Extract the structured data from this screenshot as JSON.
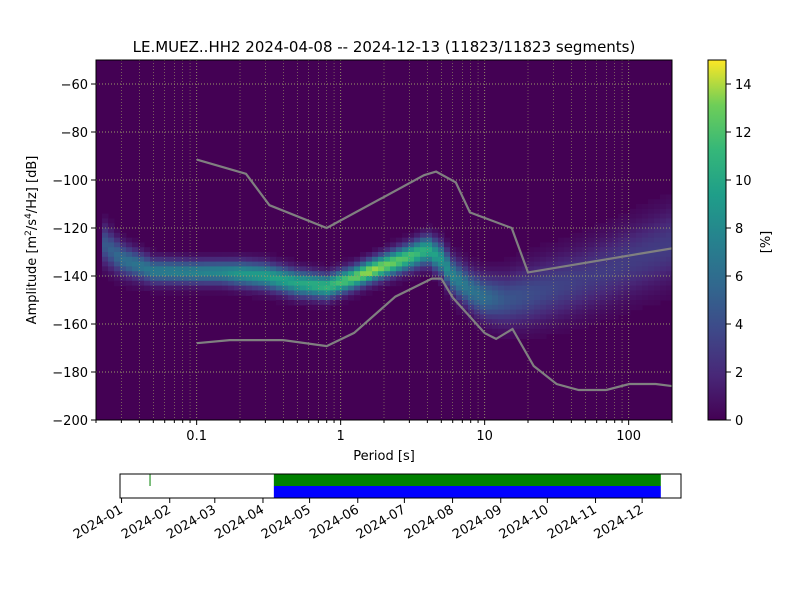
{
  "chart_data": {
    "type": "heatmap",
    "title": "LE.MUEZ..HH2   2024-04-08 -- 2024-12-13  (11823/11823 segments)",
    "xlabel": "Period [s]",
    "ylabel_parts": [
      "Amplitude [m",
      "2",
      "/s",
      "4",
      "/Hz] [dB]"
    ],
    "xscale": "log",
    "xlim": [
      0.02,
      200
    ],
    "ylim": [
      -200,
      -50
    ],
    "x_ticks": [
      {
        "value": 0.1,
        "label": "0.1"
      },
      {
        "value": 1,
        "label": "1"
      },
      {
        "value": 10,
        "label": "10"
      },
      {
        "value": 100,
        "label": "100"
      }
    ],
    "y_ticks": [
      -60,
      -80,
      -100,
      -120,
      -140,
      -160,
      -180,
      -200
    ],
    "grid": true,
    "colormap": "viridis",
    "colorbar": {
      "label": "[%]",
      "min": 0,
      "max": 15,
      "ticks": [
        0,
        2,
        4,
        6,
        8,
        10,
        12,
        14
      ]
    },
    "colors": {
      "background": "#440154",
      "noise_model": "#808080",
      "grid": "#9a9a6a"
    },
    "psd_density_band": {
      "period": [
        0.02,
        0.03,
        0.05,
        0.1,
        0.15,
        0.2,
        0.3,
        0.5,
        0.8,
        1.2,
        1.6,
        2.2,
        3.0,
        4.0,
        5.0,
        6.0,
        8.0,
        10,
        14,
        20,
        30,
        50,
        100,
        200
      ],
      "mode_db": [
        -124,
        -133,
        -138,
        -138.5,
        -138.5,
        -139,
        -140,
        -143,
        -144.5,
        -141,
        -138,
        -135,
        -132,
        -129,
        -133,
        -140,
        -146,
        -149,
        -150,
        -148,
        -145,
        -141,
        -134,
        -127
      ],
      "peak_percent": [
        4,
        6,
        7,
        7.5,
        8,
        9,
        9.5,
        10,
        11,
        12.5,
        14,
        13,
        12,
        10.5,
        9,
        7.5,
        6.5,
        6,
        4.5,
        4,
        3.5,
        3,
        3,
        3
      ],
      "spread_db": [
        6,
        4.5,
        3.5,
        3.3,
        3.3,
        3.5,
        3.6,
        3.6,
        3.4,
        3.2,
        3.2,
        3.4,
        3.6,
        4,
        4.5,
        5,
        5.5,
        6,
        7,
        8,
        8.5,
        9,
        9.5,
        10
      ]
    },
    "noise_models": {
      "high": {
        "period": [
          0.1,
          0.22,
          0.32,
          0.8,
          3.8,
          4.6,
          6.3,
          7.9,
          15.4,
          20,
          354.8
        ],
        "db": [
          -91.5,
          -97.4,
          -110.5,
          -120,
          -98,
          -96.5,
          -101,
          -113.5,
          -120,
          -138.5,
          -126
        ]
      },
      "low": {
        "period": [
          0.1,
          0.17,
          0.4,
          0.8,
          1.24,
          2.4,
          4.3,
          5,
          6,
          10,
          12,
          15.6,
          21.9,
          31.6,
          45,
          70,
          101,
          154,
          328
        ],
        "db": [
          -168,
          -166.7,
          -166.7,
          -169.2,
          -163.7,
          -148.6,
          -141.1,
          -141.1,
          -149,
          -163.8,
          -166.2,
          -162.1,
          -177.5,
          -185,
          -187.5,
          -187.5,
          -185,
          -185,
          -187.5
        ]
      }
    },
    "data_availability": {
      "xlim": [
        "2023-12-31",
        "2024-12-26"
      ],
      "tick_labels": [
        "2024-01",
        "2024-02",
        "2024-03",
        "2024-04",
        "2024-05",
        "2024-06",
        "2024-07",
        "2024-08",
        "2024-09",
        "2024-10",
        "2024-11",
        "2024-12"
      ],
      "tick_dates": [
        "2024-01-01",
        "2024-02-01",
        "2024-03-01",
        "2024-04-01",
        "2024-05-01",
        "2024-06-01",
        "2024-07-01",
        "2024-08-01",
        "2024-09-01",
        "2024-10-01",
        "2024-11-01",
        "2024-12-01"
      ],
      "coverage": [
        {
          "start": "2024-04-08",
          "end": "2024-12-13",
          "color": "#0000ff"
        },
        {
          "start": "2024-04-08",
          "end": "2024-12-13",
          "color": "#008000"
        }
      ],
      "markers": [
        {
          "date": "2024-01-19",
          "color": "#008000"
        }
      ]
    }
  }
}
